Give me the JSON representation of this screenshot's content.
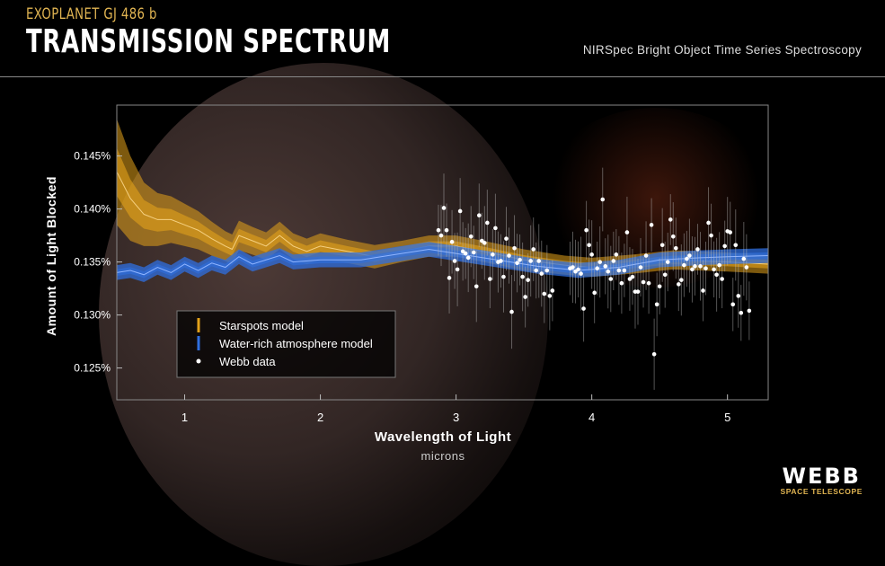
{
  "header": {
    "subtitle": "EXOPLANET GJ 486 b",
    "title": "TRANSMISSION SPECTRUM",
    "instrument": "NIRSpec Bright Object Time Series Spectroscopy"
  },
  "logo": {
    "name": "WEBB",
    "tagline": "SPACE TELESCOPE"
  },
  "colors": {
    "starspots": "#e3a21a",
    "water": "#2f6fe0",
    "data": "#ffffff",
    "background": "#000000"
  },
  "chart_data": {
    "type": "scatter",
    "title": "TRANSMISSION SPECTRUM",
    "xlabel": "Wavelength of Light",
    "xunit": "microns",
    "ylabel": "Amount of Light Blocked",
    "xlim": [
      0.5,
      5.3
    ],
    "ylim": [
      0.122,
      0.1498
    ],
    "xticks": [
      1,
      2,
      3,
      4,
      5
    ],
    "yticks": [
      0.125,
      0.13,
      0.135,
      0.14,
      0.145
    ],
    "ytick_labels": [
      "0.125%",
      "0.130%",
      "0.135%",
      "0.140%",
      "0.145%"
    ],
    "grid": false,
    "legend_position": "bottom-left",
    "legend": [
      "Starspots model",
      "Water-rich atmosphere model",
      "Webb data"
    ],
    "models": [
      {
        "name": "Starspots model",
        "color": "#e3a21a",
        "x": [
          0.5,
          0.6,
          0.7,
          0.8,
          0.9,
          1.0,
          1.1,
          1.2,
          1.3,
          1.35,
          1.4,
          1.5,
          1.6,
          1.7,
          1.8,
          1.9,
          2.0,
          2.2,
          2.4,
          2.6,
          2.8,
          3.0,
          3.2,
          3.5,
          3.8,
          4.0,
          4.3,
          4.6,
          5.0,
          5.3
        ],
        "y": [
          0.1435,
          0.141,
          0.1395,
          0.139,
          0.139,
          0.1385,
          0.138,
          0.1372,
          0.1365,
          0.1362,
          0.1375,
          0.137,
          0.1365,
          0.1375,
          0.1365,
          0.136,
          0.1365,
          0.136,
          0.1355,
          0.136,
          0.1365,
          0.1365,
          0.136,
          0.1352,
          0.1347,
          0.1345,
          0.1348,
          0.1352,
          0.135,
          0.1348
        ],
        "band": [
          0.005,
          0.004,
          0.003,
          0.0025,
          0.0022,
          0.002,
          0.0018,
          0.0016,
          0.0014,
          0.0014,
          0.0014,
          0.0013,
          0.0013,
          0.0013,
          0.0012,
          0.0012,
          0.0012,
          0.0011,
          0.0011,
          0.001,
          0.001,
          0.001,
          0.001,
          0.001,
          0.0009,
          0.0009,
          0.0009,
          0.0009,
          0.0009,
          0.0009
        ]
      },
      {
        "name": "Water-rich atmosphere model",
        "color": "#2f6fe0",
        "x": [
          0.5,
          0.6,
          0.7,
          0.8,
          0.9,
          1.0,
          1.1,
          1.2,
          1.3,
          1.4,
          1.5,
          1.6,
          1.7,
          1.8,
          2.0,
          2.3,
          2.6,
          2.8,
          3.0,
          3.3,
          3.6,
          3.9,
          4.2,
          4.5,
          4.8,
          5.0,
          5.3
        ],
        "y": [
          0.134,
          0.1342,
          0.1338,
          0.1345,
          0.134,
          0.1348,
          0.1342,
          0.1349,
          0.1345,
          0.1355,
          0.1348,
          0.1352,
          0.1356,
          0.135,
          0.1352,
          0.1352,
          0.1358,
          0.1362,
          0.1358,
          0.1352,
          0.1346,
          0.1342,
          0.1345,
          0.1352,
          0.1354,
          0.1355,
          0.1356
        ],
        "band": 0.0007
      }
    ],
    "webb_data": {
      "name": "Webb data",
      "typical_error": 0.003,
      "x": [
        2.87,
        2.91,
        2.89,
        2.93,
        2.95,
        2.97,
        2.99,
        3.01,
        3.03,
        3.05,
        3.07,
        3.09,
        3.11,
        3.13,
        3.15,
        3.17,
        3.19,
        3.21,
        3.23,
        3.25,
        3.27,
        3.29,
        3.31,
        3.33,
        3.35,
        3.37,
        3.39,
        3.41,
        3.43,
        3.45,
        3.47,
        3.49,
        3.51,
        3.53,
        3.55,
        3.57,
        3.59,
        3.61,
        3.63,
        3.65,
        3.67,
        3.69,
        3.71,
        3.84,
        3.86,
        3.88,
        3.9,
        3.92,
        3.94,
        3.96,
        3.98,
        4.0,
        4.02,
        4.04,
        4.06,
        4.08,
        4.1,
        4.12,
        4.14,
        4.16,
        4.18,
        4.2,
        4.22,
        4.24,
        4.26,
        4.28,
        4.3,
        4.32,
        4.34,
        4.36,
        4.38,
        4.4,
        4.42,
        4.44,
        4.46,
        4.48,
        4.5,
        4.52,
        4.54,
        4.56,
        4.58,
        4.6,
        4.62,
        4.64,
        4.66,
        4.68,
        4.7,
        4.72,
        4.74,
        4.76,
        4.78,
        4.8,
        4.82,
        4.84,
        4.86,
        4.88,
        4.9,
        4.92,
        4.94,
        4.96,
        4.98,
        5.0,
        5.02,
        5.04,
        5.06,
        5.08,
        5.1,
        5.12,
        5.14,
        5.16
      ],
      "y": [
        0.138,
        0.1401,
        0.1375,
        0.138,
        0.1335,
        0.1369,
        0.1351,
        0.1343,
        0.1398,
        0.136,
        0.1358,
        0.1354,
        0.1374,
        0.1359,
        0.1327,
        0.1394,
        0.137,
        0.1368,
        0.1387,
        0.1334,
        0.1357,
        0.1382,
        0.135,
        0.1351,
        0.1336,
        0.1372,
        0.1356,
        0.1303,
        0.1363,
        0.1349,
        0.1352,
        0.1336,
        0.1317,
        0.1333,
        0.1351,
        0.1362,
        0.1342,
        0.1351,
        0.1339,
        0.132,
        0.1342,
        0.1318,
        0.1323,
        0.1344,
        0.1345,
        0.1341,
        0.1343,
        0.1339,
        0.1306,
        0.138,
        0.1366,
        0.1357,
        0.1321,
        0.1344,
        0.135,
        0.1409,
        0.1346,
        0.1341,
        0.1334,
        0.1351,
        0.1357,
        0.1342,
        0.133,
        0.1342,
        0.1378,
        0.1334,
        0.1336,
        0.1322,
        0.1322,
        0.1345,
        0.1331,
        0.1356,
        0.133,
        0.1385,
        0.1263,
        0.131,
        0.1327,
        0.1366,
        0.1338,
        0.135,
        0.139,
        0.1374,
        0.1363,
        0.1329,
        0.1333,
        0.1347,
        0.1353,
        0.1356,
        0.1343,
        0.1346,
        0.1362,
        0.1346,
        0.1323,
        0.1344,
        0.1387,
        0.1375,
        0.1343,
        0.1338,
        0.1347,
        0.1334,
        0.1365,
        0.1379,
        0.1378,
        0.131,
        0.1366,
        0.1318,
        0.1302,
        0.1353,
        0.1345,
        0.1304
      ]
    }
  }
}
